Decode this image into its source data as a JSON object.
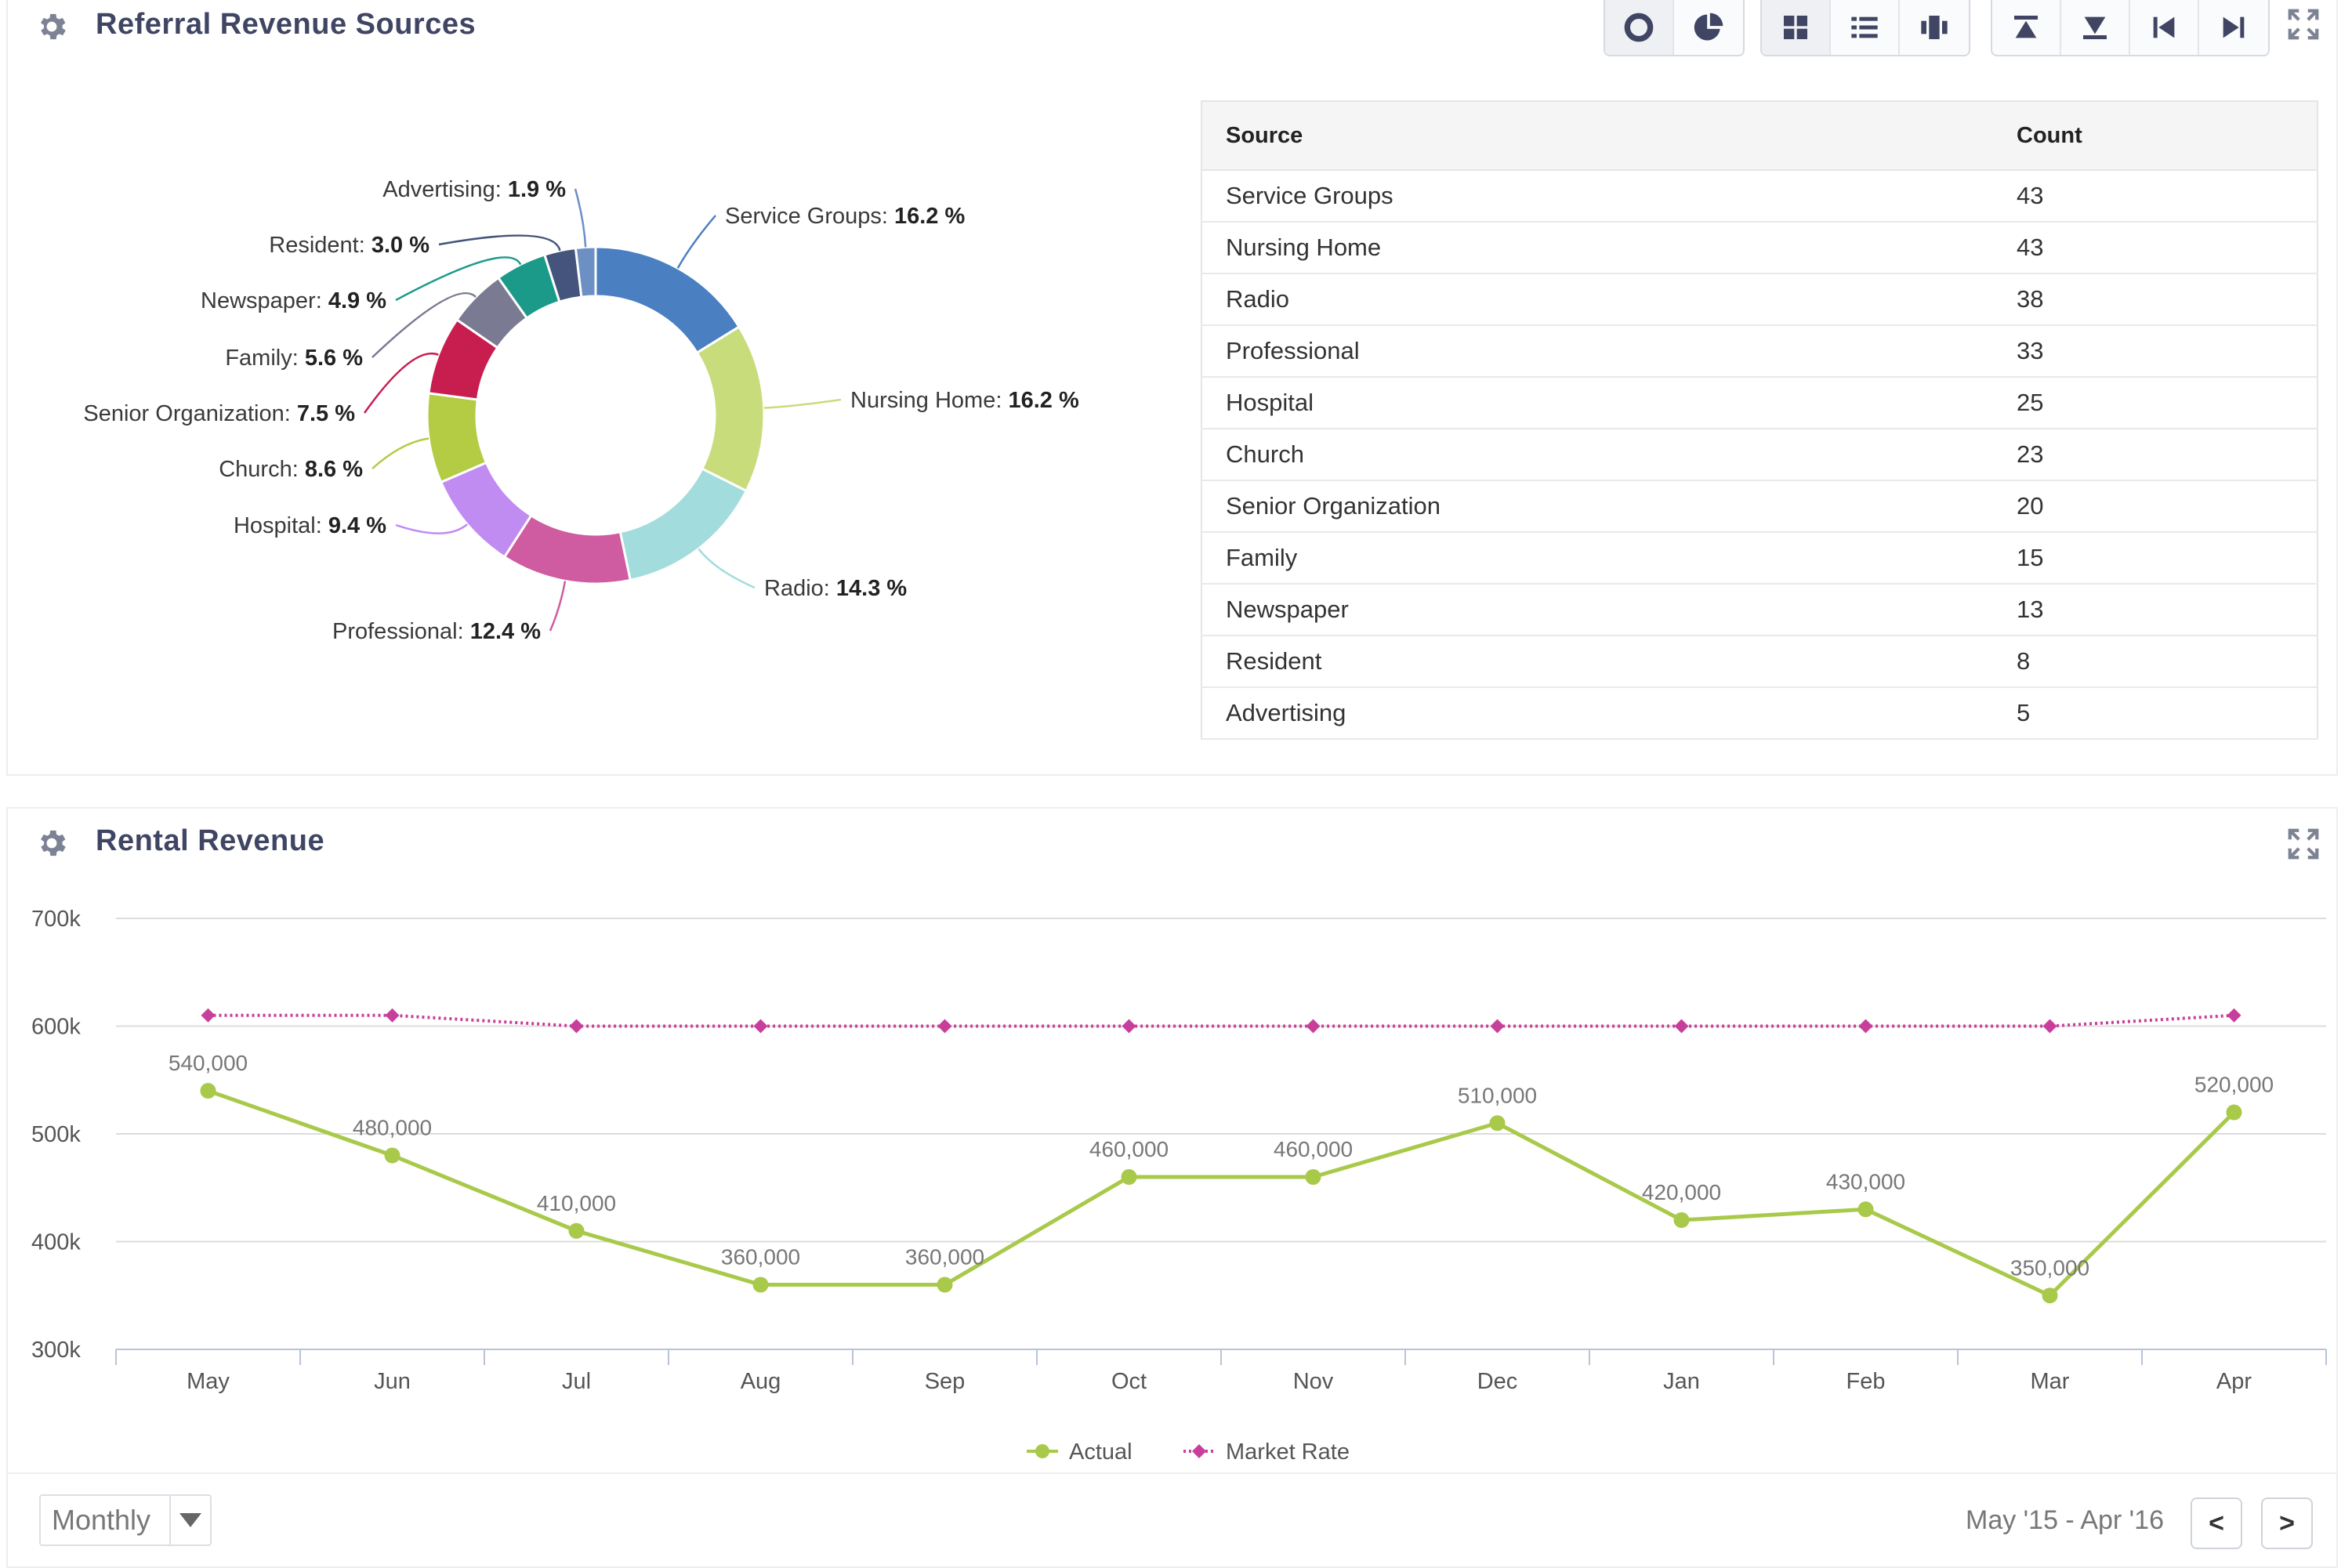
{
  "referral_panel": {
    "title": "Referral Revenue Sources",
    "table": {
      "headers": [
        "Source",
        "Count"
      ],
      "rows": [
        {
          "source": "Service Groups",
          "count": "43"
        },
        {
          "source": "Nursing Home",
          "count": "43"
        },
        {
          "source": "Radio",
          "count": "38"
        },
        {
          "source": "Professional",
          "count": "33"
        },
        {
          "source": "Hospital",
          "count": "25"
        },
        {
          "source": "Church",
          "count": "23"
        },
        {
          "source": "Senior Organization",
          "count": "20"
        },
        {
          "source": "Family",
          "count": "15"
        },
        {
          "source": "Newspaper",
          "count": "13"
        },
        {
          "source": "Resident",
          "count": "8"
        },
        {
          "source": "Advertising",
          "count": "5"
        }
      ]
    }
  },
  "rental_panel": {
    "title": "Rental Revenue"
  },
  "footer": {
    "period": "Monthly",
    "range": "May '15 - Apr '16",
    "prev_label": "<",
    "next_label": ">"
  },
  "icons": [
    "gear-icon",
    "donut-chart-icon",
    "pie-chart-icon",
    "grid-view-icon",
    "list-view-icon",
    "columns-view-icon",
    "move-top-icon",
    "move-bottom-icon",
    "move-first-icon",
    "move-last-icon",
    "expand-icon",
    "caret-down-icon"
  ],
  "chart_data": [
    {
      "type": "pie",
      "variant": "donut",
      "title": "",
      "slices": [
        {
          "label": "Service Groups",
          "value": 16.2,
          "color": "#4a7fc1"
        },
        {
          "label": "Nursing Home",
          "value": 16.2,
          "color": "#c8dc7c"
        },
        {
          "label": "Radio",
          "value": 14.3,
          "color": "#a3dcdc"
        },
        {
          "label": "Professional",
          "value": 12.4,
          "color": "#cf5ba0"
        },
        {
          "label": "Hospital",
          "value": 9.4,
          "color": "#c08cf2"
        },
        {
          "label": "Church",
          "value": 8.6,
          "color": "#b3cc44"
        },
        {
          "label": "Senior Organization",
          "value": 7.5,
          "color": "#c81d4f"
        },
        {
          "label": "Family",
          "value": 5.6,
          "color": "#7a7a92"
        },
        {
          "label": "Newspaper",
          "value": 4.9,
          "color": "#1b9a8a"
        },
        {
          "label": "Resident",
          "value": 3.0,
          "color": "#44547c"
        },
        {
          "label": "Advertising",
          "value": 1.9,
          "color": "#6c90c4"
        }
      ],
      "label_suffix": " %"
    },
    {
      "type": "line",
      "title": "",
      "categories": [
        "May",
        "Jun",
        "Jul",
        "Aug",
        "Sep",
        "Oct",
        "Nov",
        "Dec",
        "Jan",
        "Feb",
        "Mar",
        "Apr"
      ],
      "series": [
        {
          "name": "Actual",
          "color": "#a9c94a",
          "marker": "circle",
          "values": [
            540000,
            480000,
            410000,
            360000,
            360000,
            460000,
            460000,
            510000,
            420000,
            430000,
            350000,
            520000
          ],
          "data_labels": [
            "540,000",
            "480,000",
            "410,000",
            "360,000",
            "360,000",
            "460,000",
            "460,000",
            "510,000",
            "420,000",
            "430,000",
            "350,000",
            "520,000"
          ]
        },
        {
          "name": "Market Rate",
          "color": "#c83f9b",
          "marker": "diamond",
          "style": "dotted",
          "values": [
            610000,
            610000,
            600000,
            600000,
            600000,
            600000,
            600000,
            600000,
            600000,
            600000,
            600000,
            610000
          ]
        }
      ],
      "ylim": [
        300000,
        700000
      ],
      "yticks": [
        "300k",
        "400k",
        "500k",
        "600k",
        "700k"
      ],
      "grid": true,
      "legend": "bottom-center"
    }
  ]
}
